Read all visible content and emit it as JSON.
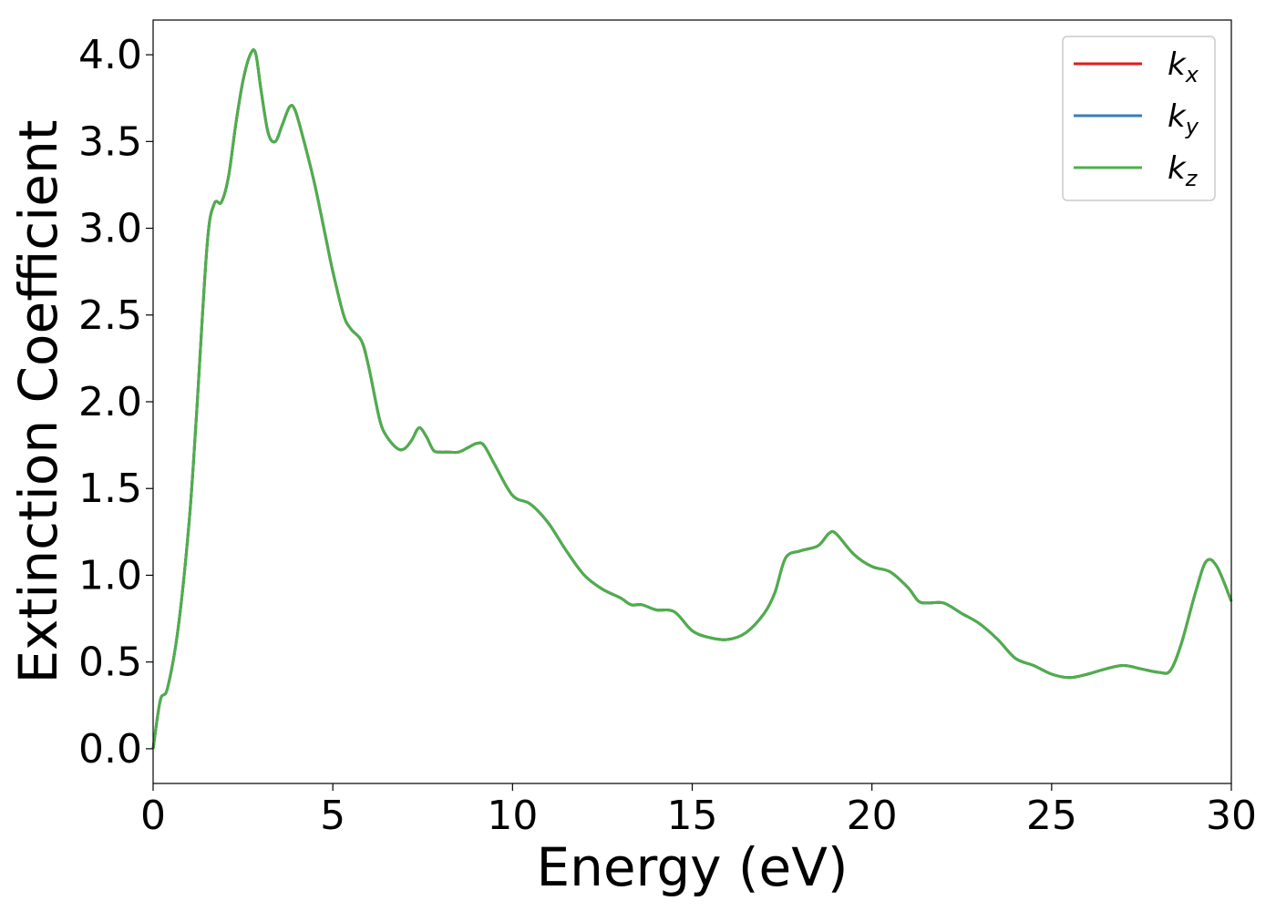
{
  "chart_data": {
    "type": "line",
    "title": "",
    "xlabel": "Energy (eV)",
    "ylabel": "Extinction Coefficient",
    "xlim": [
      0,
      30
    ],
    "ylim": [
      -0.2,
      4.2
    ],
    "xticks": [
      0,
      5,
      10,
      15,
      20,
      25,
      30
    ],
    "xtick_labels": [
      "0",
      "5",
      "10",
      "15",
      "20",
      "25",
      "30"
    ],
    "yticks": [
      0.0,
      0.5,
      1.0,
      1.5,
      2.0,
      2.5,
      3.0,
      3.5,
      4.0
    ],
    "ytick_labels": [
      "0.0",
      "0.5",
      "1.0",
      "1.5",
      "2.0",
      "2.5",
      "3.0",
      "3.5",
      "4.0"
    ],
    "grid": false,
    "legend_position": "top-right",
    "series": [
      {
        "name": "kx",
        "base": "k",
        "sub": "x",
        "color": "#e41a1c",
        "x": [
          0,
          0.2,
          0.4,
          0.7,
          1.0,
          1.2,
          1.5,
          1.7,
          1.9,
          2.1,
          2.3,
          2.5,
          2.7,
          2.85,
          3.0,
          3.2,
          3.4,
          3.6,
          3.8,
          3.95,
          4.2,
          4.5,
          4.8,
          5.0,
          5.3,
          5.5,
          5.8,
          6.0,
          6.3,
          6.5,
          6.8,
          7.0,
          7.2,
          7.4,
          7.6,
          7.8,
          8.0,
          8.2,
          8.5,
          8.8,
          9.0,
          9.2,
          9.5,
          10.0,
          10.5,
          11.0,
          11.5,
          12.0,
          12.5,
          13.0,
          13.3,
          13.6,
          14.0,
          14.5,
          15.0,
          15.5,
          16.0,
          16.5,
          17.0,
          17.3,
          17.6,
          18.0,
          18.5,
          18.8,
          19.0,
          19.5,
          20.0,
          20.5,
          21.0,
          21.3,
          21.6,
          22.0,
          22.5,
          23.0,
          23.5,
          24.0,
          24.5,
          25.0,
          25.5,
          26.0,
          26.5,
          27.0,
          27.5,
          28.0,
          28.3,
          28.6,
          29.0,
          29.3,
          29.6,
          30.0
        ],
        "values": [
          0.0,
          0.28,
          0.35,
          0.7,
          1.3,
          1.9,
          2.9,
          3.14,
          3.15,
          3.3,
          3.6,
          3.85,
          4.0,
          4.01,
          3.8,
          3.55,
          3.5,
          3.6,
          3.7,
          3.68,
          3.5,
          3.25,
          2.95,
          2.75,
          2.5,
          2.42,
          2.35,
          2.2,
          1.9,
          1.8,
          1.73,
          1.73,
          1.78,
          1.85,
          1.8,
          1.72,
          1.71,
          1.71,
          1.71,
          1.74,
          1.76,
          1.75,
          1.64,
          1.46,
          1.41,
          1.3,
          1.14,
          1.0,
          0.92,
          0.87,
          0.83,
          0.83,
          0.8,
          0.79,
          0.68,
          0.64,
          0.63,
          0.67,
          0.78,
          0.9,
          1.1,
          1.14,
          1.17,
          1.24,
          1.24,
          1.12,
          1.05,
          1.02,
          0.93,
          0.85,
          0.84,
          0.84,
          0.78,
          0.72,
          0.63,
          0.52,
          0.48,
          0.43,
          0.41,
          0.43,
          0.46,
          0.48,
          0.46,
          0.44,
          0.45,
          0.6,
          0.9,
          1.08,
          1.05,
          0.85
        ]
      },
      {
        "name": "ky",
        "base": "k",
        "sub": "y",
        "color": "#377eb8",
        "x": [
          0,
          0.2,
          0.4,
          0.7,
          1.0,
          1.2,
          1.5,
          1.7,
          1.9,
          2.1,
          2.3,
          2.5,
          2.7,
          2.85,
          3.0,
          3.2,
          3.4,
          3.6,
          3.8,
          3.95,
          4.2,
          4.5,
          4.8,
          5.0,
          5.3,
          5.5,
          5.8,
          6.0,
          6.3,
          6.5,
          6.8,
          7.0,
          7.2,
          7.4,
          7.6,
          7.8,
          8.0,
          8.2,
          8.5,
          8.8,
          9.0,
          9.2,
          9.5,
          10.0,
          10.5,
          11.0,
          11.5,
          12.0,
          12.5,
          13.0,
          13.3,
          13.6,
          14.0,
          14.5,
          15.0,
          15.5,
          16.0,
          16.5,
          17.0,
          17.3,
          17.6,
          18.0,
          18.5,
          18.8,
          19.0,
          19.5,
          20.0,
          20.5,
          21.0,
          21.3,
          21.6,
          22.0,
          22.5,
          23.0,
          23.5,
          24.0,
          24.5,
          25.0,
          25.5,
          26.0,
          26.5,
          27.0,
          27.5,
          28.0,
          28.3,
          28.6,
          29.0,
          29.3,
          29.6,
          30.0
        ],
        "values": [
          0.0,
          0.28,
          0.35,
          0.7,
          1.3,
          1.9,
          2.9,
          3.14,
          3.15,
          3.3,
          3.6,
          3.85,
          4.0,
          4.01,
          3.8,
          3.55,
          3.5,
          3.6,
          3.7,
          3.68,
          3.5,
          3.25,
          2.95,
          2.75,
          2.5,
          2.42,
          2.35,
          2.2,
          1.9,
          1.8,
          1.73,
          1.73,
          1.78,
          1.85,
          1.8,
          1.72,
          1.71,
          1.71,
          1.71,
          1.74,
          1.76,
          1.75,
          1.64,
          1.46,
          1.41,
          1.3,
          1.14,
          1.0,
          0.92,
          0.87,
          0.83,
          0.83,
          0.8,
          0.79,
          0.68,
          0.64,
          0.63,
          0.67,
          0.78,
          0.9,
          1.1,
          1.14,
          1.17,
          1.24,
          1.24,
          1.12,
          1.05,
          1.02,
          0.93,
          0.85,
          0.84,
          0.84,
          0.78,
          0.72,
          0.63,
          0.52,
          0.48,
          0.43,
          0.41,
          0.43,
          0.46,
          0.48,
          0.46,
          0.44,
          0.45,
          0.6,
          0.9,
          1.08,
          1.05,
          0.85
        ]
      },
      {
        "name": "kz",
        "base": "k",
        "sub": "z",
        "color": "#4daf4a",
        "x": [
          0,
          0.2,
          0.4,
          0.7,
          1.0,
          1.2,
          1.5,
          1.7,
          1.9,
          2.1,
          2.3,
          2.5,
          2.7,
          2.85,
          3.0,
          3.2,
          3.4,
          3.6,
          3.8,
          3.95,
          4.2,
          4.5,
          4.8,
          5.0,
          5.3,
          5.5,
          5.8,
          6.0,
          6.3,
          6.5,
          6.8,
          7.0,
          7.2,
          7.4,
          7.6,
          7.8,
          8.0,
          8.2,
          8.5,
          8.8,
          9.0,
          9.2,
          9.5,
          10.0,
          10.5,
          11.0,
          11.5,
          12.0,
          12.5,
          13.0,
          13.3,
          13.6,
          14.0,
          14.5,
          15.0,
          15.5,
          16.0,
          16.5,
          17.0,
          17.3,
          17.6,
          18.0,
          18.5,
          18.8,
          19.0,
          19.5,
          20.0,
          20.5,
          21.0,
          21.3,
          21.6,
          22.0,
          22.5,
          23.0,
          23.5,
          24.0,
          24.5,
          25.0,
          25.5,
          26.0,
          26.5,
          27.0,
          27.5,
          28.0,
          28.3,
          28.6,
          29.0,
          29.3,
          29.6,
          30.0
        ],
        "values": [
          0.0,
          0.28,
          0.35,
          0.7,
          1.3,
          1.9,
          2.9,
          3.14,
          3.15,
          3.3,
          3.6,
          3.85,
          4.0,
          4.01,
          3.8,
          3.55,
          3.5,
          3.6,
          3.7,
          3.68,
          3.5,
          3.25,
          2.95,
          2.75,
          2.5,
          2.42,
          2.35,
          2.2,
          1.9,
          1.8,
          1.73,
          1.73,
          1.78,
          1.85,
          1.8,
          1.72,
          1.71,
          1.71,
          1.71,
          1.74,
          1.76,
          1.75,
          1.64,
          1.46,
          1.41,
          1.3,
          1.14,
          1.0,
          0.92,
          0.87,
          0.83,
          0.83,
          0.8,
          0.79,
          0.68,
          0.64,
          0.63,
          0.67,
          0.78,
          0.9,
          1.1,
          1.14,
          1.17,
          1.24,
          1.24,
          1.12,
          1.05,
          1.02,
          0.93,
          0.85,
          0.84,
          0.84,
          0.78,
          0.72,
          0.63,
          0.52,
          0.48,
          0.43,
          0.41,
          0.43,
          0.46,
          0.48,
          0.46,
          0.44,
          0.45,
          0.6,
          0.9,
          1.08,
          1.05,
          0.85
        ]
      }
    ]
  }
}
